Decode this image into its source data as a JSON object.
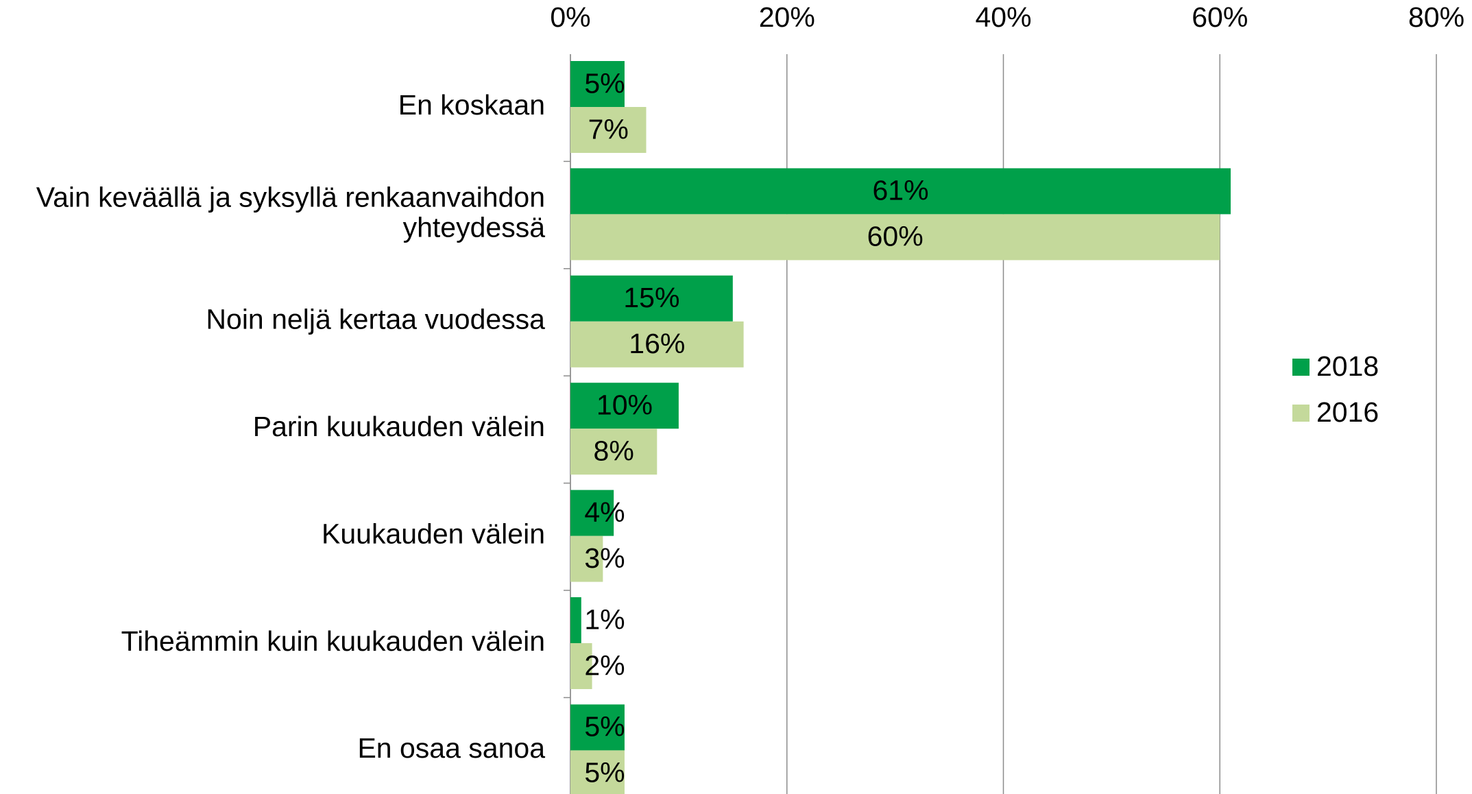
{
  "chart_data": {
    "type": "barh",
    "categories": [
      "En koskaan",
      "Vain keväällä ja syksyllä renkaanvaihdon\nyhteydessä",
      "Noin neljä kertaa vuodessa",
      "Parin kuukauden välein",
      "Kuukauden välein",
      "Tiheämmin kuin kuukauden välein",
      "En osaa sanoa"
    ],
    "series": [
      {
        "name": "2018",
        "color": "#00a04a",
        "values": [
          5,
          61,
          15,
          10,
          4,
          1,
          5
        ],
        "value_labels": [
          "5%",
          "61%",
          "15%",
          "10%",
          "4%",
          "1%",
          "5%"
        ]
      },
      {
        "name": "2016",
        "color": "#c4d99b",
        "values": [
          7,
          60,
          16,
          8,
          3,
          2,
          5
        ],
        "value_labels": [
          "7%",
          "60%",
          "16%",
          "8%",
          "3%",
          "2%",
          "5%"
        ]
      }
    ],
    "xlim": [
      0,
      80
    ],
    "xticks": [
      {
        "value": 0,
        "label": "0%"
      },
      {
        "value": 20,
        "label": "20%"
      },
      {
        "value": 40,
        "label": "40%"
      },
      {
        "value": 60,
        "label": "60%"
      },
      {
        "value": 80,
        "label": "80%"
      }
    ],
    "grid": true,
    "legend": "right"
  }
}
